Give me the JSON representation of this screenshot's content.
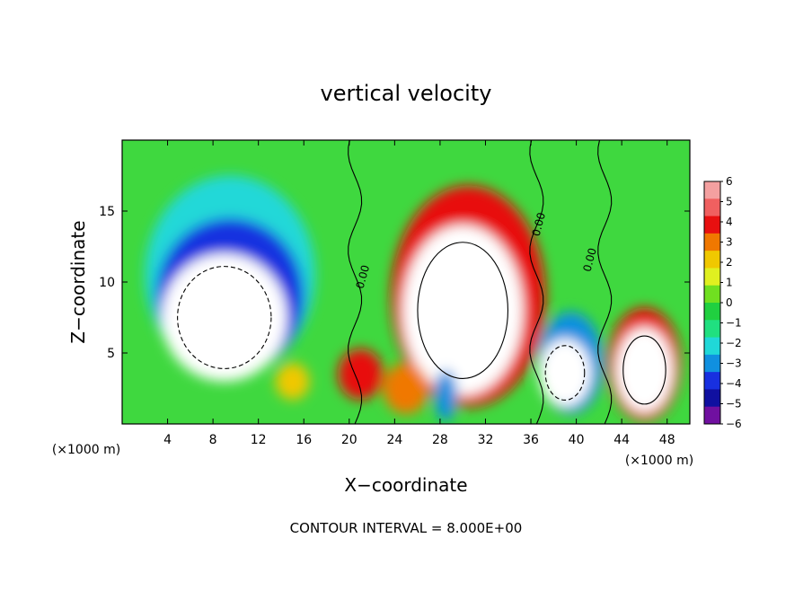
{
  "chart_data": {
    "type": "heatmap",
    "title": "vertical velocity",
    "xlabel": "X−coordinate",
    "ylabel": "Z−coordinate",
    "x_unit": "(×1000 m)",
    "y_unit": "(×1000 m)",
    "xlim": [
      0,
      50
    ],
    "ylim": [
      0,
      20
    ],
    "x_ticks": [
      "4",
      "8",
      "12",
      "16",
      "20",
      "24",
      "28",
      "32",
      "36",
      "40",
      "44",
      "48"
    ],
    "y_ticks": [
      "5",
      "10",
      "15"
    ],
    "x_tick_values": [
      4,
      8,
      12,
      16,
      20,
      24,
      28,
      32,
      36,
      40,
      44,
      48
    ],
    "y_tick_values": [
      5,
      10,
      15
    ],
    "colorbar": {
      "labels": [
        "6",
        "5",
        "4",
        "3",
        "2",
        "1",
        "0",
        "−1",
        "−2",
        "−3",
        "−4",
        "−5",
        "−6"
      ],
      "colors": [
        "#f4a0a0",
        "#f06060",
        "#e81010",
        "#f07800",
        "#f0c800",
        "#e0f020",
        "#70e020",
        "#20d040",
        "#20e080",
        "#20d8d8",
        "#1090e0",
        "#1830e0",
        "#1010a0",
        "#7010a0"
      ]
    },
    "contour_labels": [
      "0.00",
      "0.00",
      "0.00"
    ],
    "footnote": "CONTOUR INTERVAL = 8.000E+00",
    "cells": [
      {
        "x": 9.5,
        "z": 10.5,
        "rx": 7.5,
        "rz": 7.0,
        "value": -3
      },
      {
        "x": 9.5,
        "z": 9.0,
        "rx": 6.5,
        "rz": 5.5,
        "value": -5
      },
      {
        "x": 9.0,
        "z": 7.5,
        "rx": 5.5,
        "rz": 4.5,
        "value": -6.5
      },
      {
        "x": 30.5,
        "z": 9.0,
        "rx": 6.8,
        "rz": 7.8,
        "value": 4
      },
      {
        "x": 30.0,
        "z": 8.0,
        "rx": 5.3,
        "rz": 6.0,
        "value": 6.5
      },
      {
        "x": 39.5,
        "z": 4.3,
        "rx": 2.9,
        "rz": 3.6,
        "value": -4
      },
      {
        "x": 39.0,
        "z": 3.6,
        "rx": 2.3,
        "rz": 2.4,
        "value": -6.5
      },
      {
        "x": 46.0,
        "z": 4.2,
        "rx": 3.2,
        "rz": 4.0,
        "value": 4
      },
      {
        "x": 46.0,
        "z": 3.8,
        "rx": 2.5,
        "rz": 3.0,
        "value": 6.5
      },
      {
        "x": 21.0,
        "z": 3.5,
        "rx": 2.0,
        "rz": 1.8,
        "value": 4
      },
      {
        "x": 15.0,
        "z": 3.0,
        "rx": 1.5,
        "rz": 1.3,
        "value": 2
      },
      {
        "x": 25.0,
        "z": 2.5,
        "rx": 2.0,
        "rz": 1.8,
        "value": 3
      },
      {
        "x": 28.5,
        "z": 2.0,
        "rx": 1.0,
        "rz": 1.8,
        "value": -4
      }
    ]
  }
}
